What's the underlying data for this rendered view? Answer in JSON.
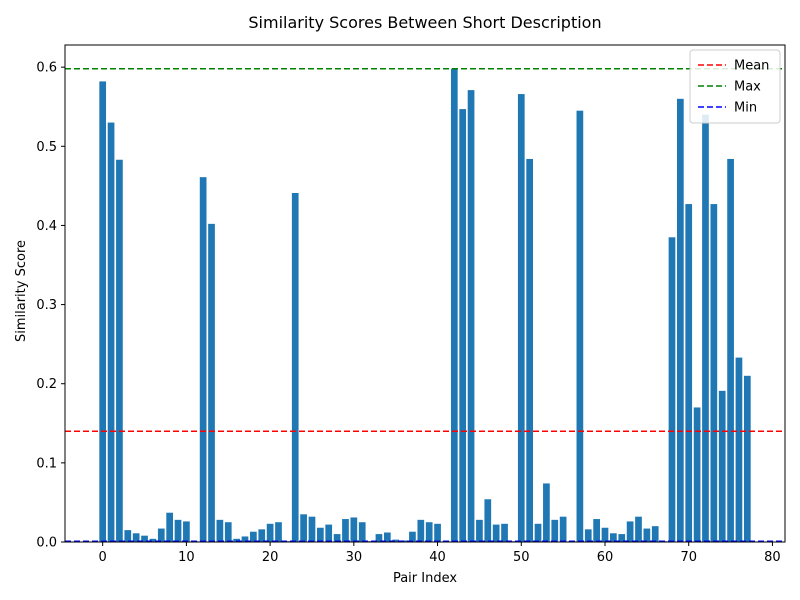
{
  "chart_data": {
    "type": "bar",
    "title": "Similarity Scores Between Short Description",
    "xlabel": "Pair Index",
    "ylabel": "Similarity Score",
    "xlim": [
      -4.5,
      81.5
    ],
    "ylim": [
      0,
      0.628
    ],
    "xticks": [
      0,
      10,
      20,
      30,
      40,
      50,
      60,
      70,
      80
    ],
    "xtick_labels": [
      "0",
      "10",
      "20",
      "30",
      "40",
      "50",
      "60",
      "70",
      "80"
    ],
    "yticks": [
      0.0,
      0.1,
      0.2,
      0.3,
      0.4,
      0.5,
      0.6
    ],
    "ytick_labels": [
      "0.0",
      "0.1",
      "0.2",
      "0.3",
      "0.4",
      "0.5",
      "0.6"
    ],
    "x": [
      0,
      1,
      2,
      3,
      4,
      5,
      6,
      7,
      8,
      9,
      10,
      11,
      12,
      13,
      14,
      15,
      16,
      17,
      18,
      19,
      20,
      21,
      22,
      23,
      24,
      25,
      26,
      27,
      28,
      29,
      30,
      31,
      32,
      33,
      34,
      35,
      36,
      37,
      38,
      39,
      40,
      41,
      42,
      43,
      44,
      45,
      46,
      47,
      48,
      49,
      50,
      51,
      52,
      53,
      54,
      55,
      56,
      57,
      58,
      59,
      60,
      61,
      62,
      63,
      64,
      65,
      66,
      67,
      68,
      69,
      70,
      71,
      72,
      73,
      74,
      75,
      76,
      77
    ],
    "values": [
      0.582,
      0.53,
      0.483,
      0.015,
      0.011,
      0.008,
      0.004,
      0.017,
      0.037,
      0.028,
      0.026,
      0.001,
      0.461,
      0.402,
      0.028,
      0.025,
      0.004,
      0.007,
      0.013,
      0.016,
      0.023,
      0.025,
      0.001,
      0.441,
      0.035,
      0.032,
      0.018,
      0.022,
      0.01,
      0.029,
      0.031,
      0.025,
      0.001,
      0.01,
      0.012,
      0.003,
      0.002,
      0.013,
      0.028,
      0.025,
      0.023,
      0.001,
      0.598,
      0.547,
      0.571,
      0.028,
      0.054,
      0.022,
      0.023,
      0.001,
      0.566,
      0.484,
      0.023,
      0.074,
      0.028,
      0.032,
      0.001,
      0.545,
      0.016,
      0.029,
      0.018,
      0.011,
      0.01,
      0.026,
      0.032,
      0.017,
      0.02,
      0.001,
      0.385,
      0.56,
      0.427,
      0.17,
      0.54,
      0.427,
      0.191,
      0.484,
      0.233,
      0.21
    ],
    "bar_color": "#1f77b4",
    "reference_lines": [
      {
        "name": "Mean",
        "value": 0.14,
        "color": "#ff0000"
      },
      {
        "name": "Max",
        "value": 0.598,
        "color": "#008000"
      },
      {
        "name": "Min",
        "value": 0.001,
        "color": "#0000ff"
      }
    ],
    "legend_position": "top-right",
    "grid": false
  }
}
